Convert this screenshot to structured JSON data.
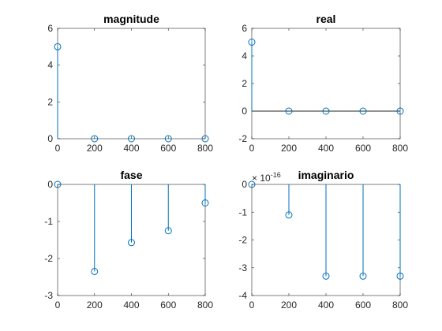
{
  "chart_data": [
    {
      "type": "stem",
      "title": "magnitude",
      "x": [
        0,
        200,
        400,
        600,
        800
      ],
      "y": [
        5,
        0,
        0,
        0,
        0
      ],
      "xlim": [
        0,
        800
      ],
      "ylim": [
        0,
        6
      ],
      "xticks": [
        0,
        200,
        400,
        600,
        800
      ],
      "xtick_labels": [
        "0",
        "200",
        "400",
        "600",
        "800"
      ],
      "yticks": [
        0,
        2,
        4,
        6
      ],
      "ytick_labels": [
        "0",
        "2",
        "4",
        "6"
      ],
      "baseline": false,
      "exponent_label": "",
      "color": "#0072BD"
    },
    {
      "type": "stem",
      "title": "real",
      "x": [
        0,
        200,
        400,
        600,
        800
      ],
      "y": [
        5,
        0,
        0,
        0,
        0
      ],
      "xlim": [
        0,
        800
      ],
      "ylim": [
        -2,
        6
      ],
      "xticks": [
        0,
        200,
        400,
        600,
        800
      ],
      "xtick_labels": [
        "0",
        "200",
        "400",
        "600",
        "800"
      ],
      "yticks": [
        -2,
        0,
        2,
        4,
        6
      ],
      "ytick_labels": [
        "-2",
        "0",
        "2",
        "4",
        "6"
      ],
      "baseline": true,
      "exponent_label": "",
      "color": "#0072BD"
    },
    {
      "type": "stem",
      "title": "fase",
      "x": [
        0,
        200,
        400,
        600,
        800
      ],
      "y": [
        0,
        -2.35,
        -1.57,
        -1.25,
        -0.5
      ],
      "xlim": [
        0,
        800
      ],
      "ylim": [
        -3,
        0
      ],
      "xticks": [
        0,
        200,
        400,
        600,
        800
      ],
      "xtick_labels": [
        "0",
        "200",
        "400",
        "600",
        "800"
      ],
      "yticks": [
        -3,
        -2,
        -1,
        0
      ],
      "ytick_labels": [
        "-3",
        "-2",
        "-1",
        "0"
      ],
      "baseline": false,
      "exponent_label": "",
      "color": "#0072BD"
    },
    {
      "type": "stem",
      "title": "imaginario",
      "x": [
        0,
        200,
        400,
        600,
        800
      ],
      "y": [
        0,
        -1.1,
        -3.3,
        -3.3,
        -3.3
      ],
      "xlim": [
        0,
        800
      ],
      "ylim": [
        -4,
        0
      ],
      "xticks": [
        0,
        200,
        400,
        600,
        800
      ],
      "xtick_labels": [
        "0",
        "200",
        "400",
        "600",
        "800"
      ],
      "yticks": [
        -4,
        -3,
        -2,
        -1,
        0
      ],
      "ytick_labels": [
        "-4",
        "-3",
        "-2",
        "-1",
        "0"
      ],
      "baseline": false,
      "exponent_label": "× 10",
      "exponent_power": "-16",
      "color": "#0072BD"
    }
  ]
}
